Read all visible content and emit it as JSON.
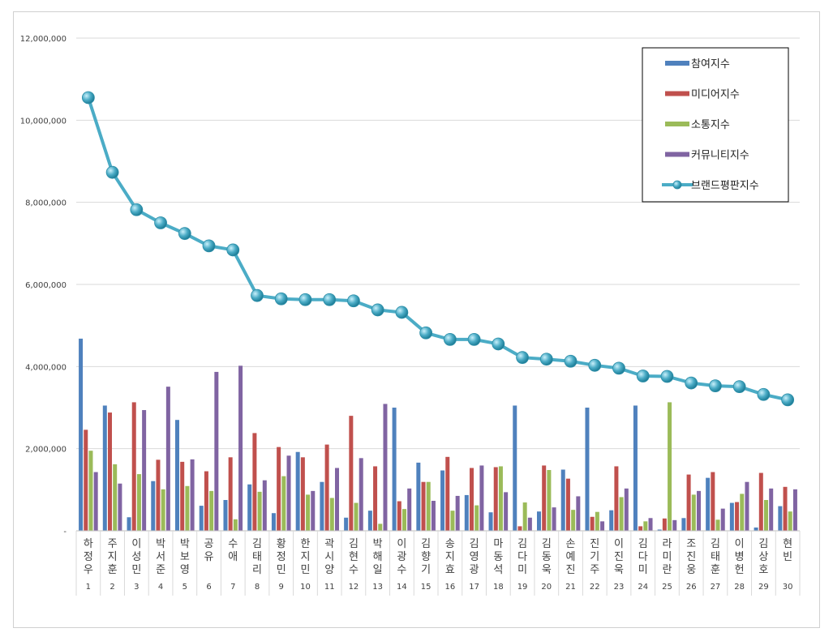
{
  "chart_data": {
    "type": "bar",
    "title": "",
    "xlabel": "",
    "ylabel": "",
    "ylim": [
      0,
      12000000
    ],
    "y_ticks": [
      "-",
      "2,000,000",
      "4,000,000",
      "6,000,000",
      "8,000,000",
      "10,000,000",
      "12,000,000"
    ],
    "y_tick_values": [
      0,
      2000000,
      4000000,
      6000000,
      8000000,
      10000000,
      12000000
    ],
    "grid": true,
    "legend_position": "top-right",
    "categories": [
      "하정우",
      "주지훈",
      "이성민",
      "박서준",
      "박보영",
      "공유",
      "수애",
      "김태리",
      "황정민",
      "한지민",
      "곽시양",
      "김현수",
      "박해일",
      "이광수",
      "김향기",
      "송지효",
      "김영광",
      "마동석",
      "김다미",
      "김동욱",
      "손예진",
      "진기주",
      "이진욱",
      "김다미",
      "라미란",
      "조진웅",
      "김태훈",
      "이병헌",
      "김상호",
      "현빈"
    ],
    "ranks": [
      "1",
      "2",
      "3",
      "4",
      "5",
      "6",
      "7",
      "8",
      "9",
      "10",
      "11",
      "12",
      "13",
      "14",
      "15",
      "16",
      "17",
      "18",
      "19",
      "20",
      "21",
      "22",
      "23",
      "24",
      "25",
      "26",
      "27",
      "28",
      "29",
      "30"
    ],
    "series": [
      {
        "name": "참여지수",
        "type": "bar",
        "color": "#4f81bd",
        "values": [
          4680000,
          3050000,
          330000,
          1210000,
          2700000,
          610000,
          750000,
          1130000,
          430000,
          1920000,
          1190000,
          320000,
          490000,
          3000000,
          1660000,
          1470000,
          870000,
          450000,
          3050000,
          470000,
          1490000,
          3000000,
          500000,
          3050000,
          30000,
          310000,
          1290000,
          680000,
          80000,
          600000
        ]
      },
      {
        "name": "미디어지수",
        "type": "bar",
        "color": "#c0504d",
        "values": [
          2460000,
          2880000,
          3130000,
          1730000,
          1680000,
          1450000,
          1790000,
          2380000,
          2040000,
          1790000,
          2100000,
          2800000,
          1570000,
          720000,
          1190000,
          1800000,
          1530000,
          1550000,
          110000,
          1590000,
          1270000,
          340000,
          1570000,
          110000,
          300000,
          1370000,
          1430000,
          700000,
          1410000,
          1070000
        ]
      },
      {
        "name": "소통지수",
        "type": "bar",
        "color": "#9bbb59",
        "values": [
          1950000,
          1620000,
          1380000,
          1010000,
          1090000,
          970000,
          280000,
          950000,
          1330000,
          880000,
          800000,
          680000,
          170000,
          530000,
          1190000,
          490000,
          620000,
          1570000,
          690000,
          1480000,
          510000,
          460000,
          820000,
          230000,
          3130000,
          880000,
          270000,
          900000,
          750000,
          470000
        ]
      },
      {
        "name": "커뮤니티지수",
        "type": "bar",
        "color": "#8064a2",
        "values": [
          1430000,
          1150000,
          2940000,
          3510000,
          1740000,
          3870000,
          4020000,
          1230000,
          1830000,
          970000,
          1530000,
          1770000,
          3090000,
          1030000,
          730000,
          850000,
          1590000,
          940000,
          320000,
          570000,
          840000,
          230000,
          1030000,
          310000,
          260000,
          970000,
          540000,
          1190000,
          1030000,
          1010000
        ]
      },
      {
        "name": "브랜드평판지수",
        "type": "line",
        "color": "#4bacc6",
        "values": [
          10550000,
          8730000,
          7820000,
          7500000,
          7240000,
          6940000,
          6840000,
          5730000,
          5650000,
          5630000,
          5630000,
          5600000,
          5380000,
          5320000,
          4820000,
          4660000,
          4660000,
          4550000,
          4220000,
          4180000,
          4130000,
          4030000,
          3960000,
          3770000,
          3760000,
          3600000,
          3530000,
          3510000,
          3320000,
          3190000
        ]
      }
    ]
  }
}
